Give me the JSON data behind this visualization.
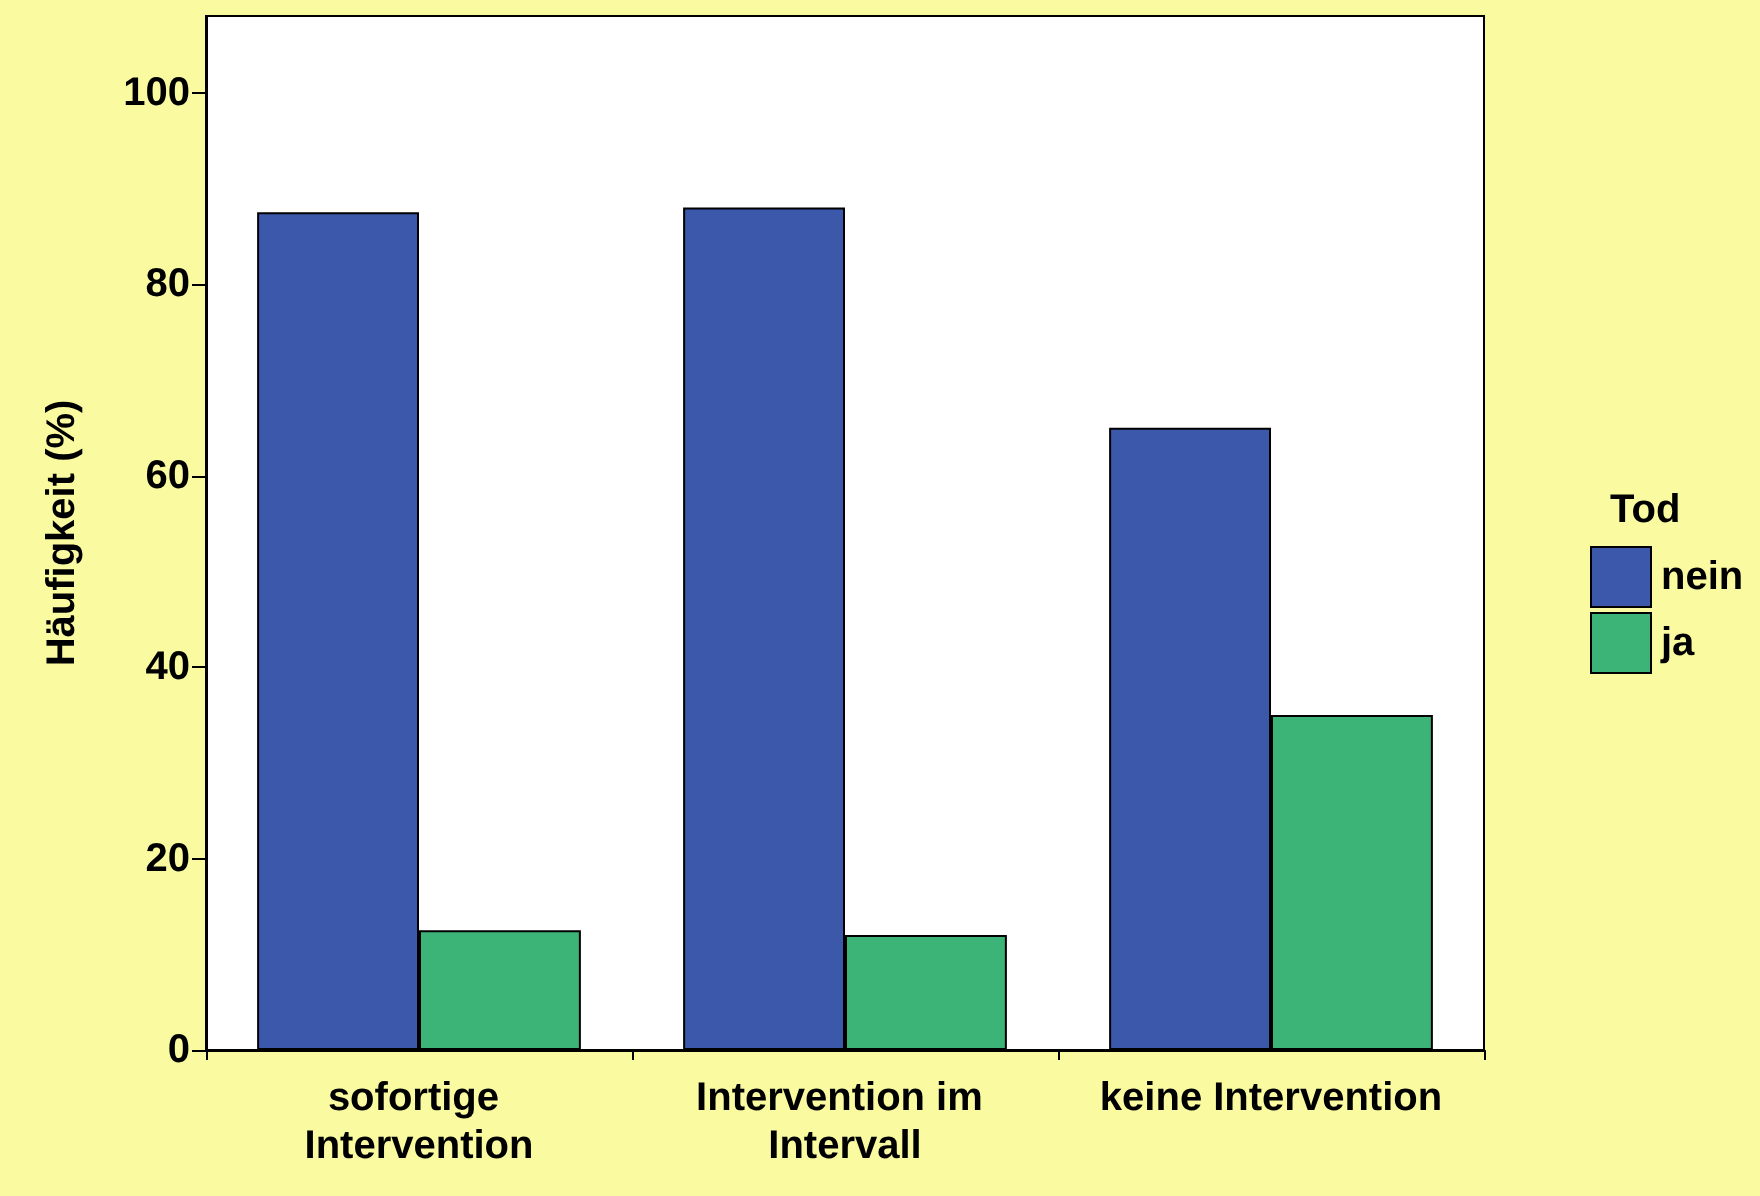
{
  "chart_data": {
    "type": "bar",
    "ylabel": "Häufigkeit (%)",
    "legend_title": "Tod",
    "categories": [
      "sofortige Intervention",
      "Intervention im Intervall",
      "keine Intervention"
    ],
    "series": [
      {
        "name": "nein",
        "color": "#3c58aa",
        "values": [
          87.5,
          88,
          65
        ]
      },
      {
        "name": "ja",
        "color": "#3cb478",
        "values": [
          12.5,
          12,
          35
        ]
      }
    ],
    "ylim": [
      0,
      108
    ],
    "yticks": [
      0,
      20,
      40,
      60,
      80,
      100
    ],
    "grid": false,
    "legend": "right"
  }
}
